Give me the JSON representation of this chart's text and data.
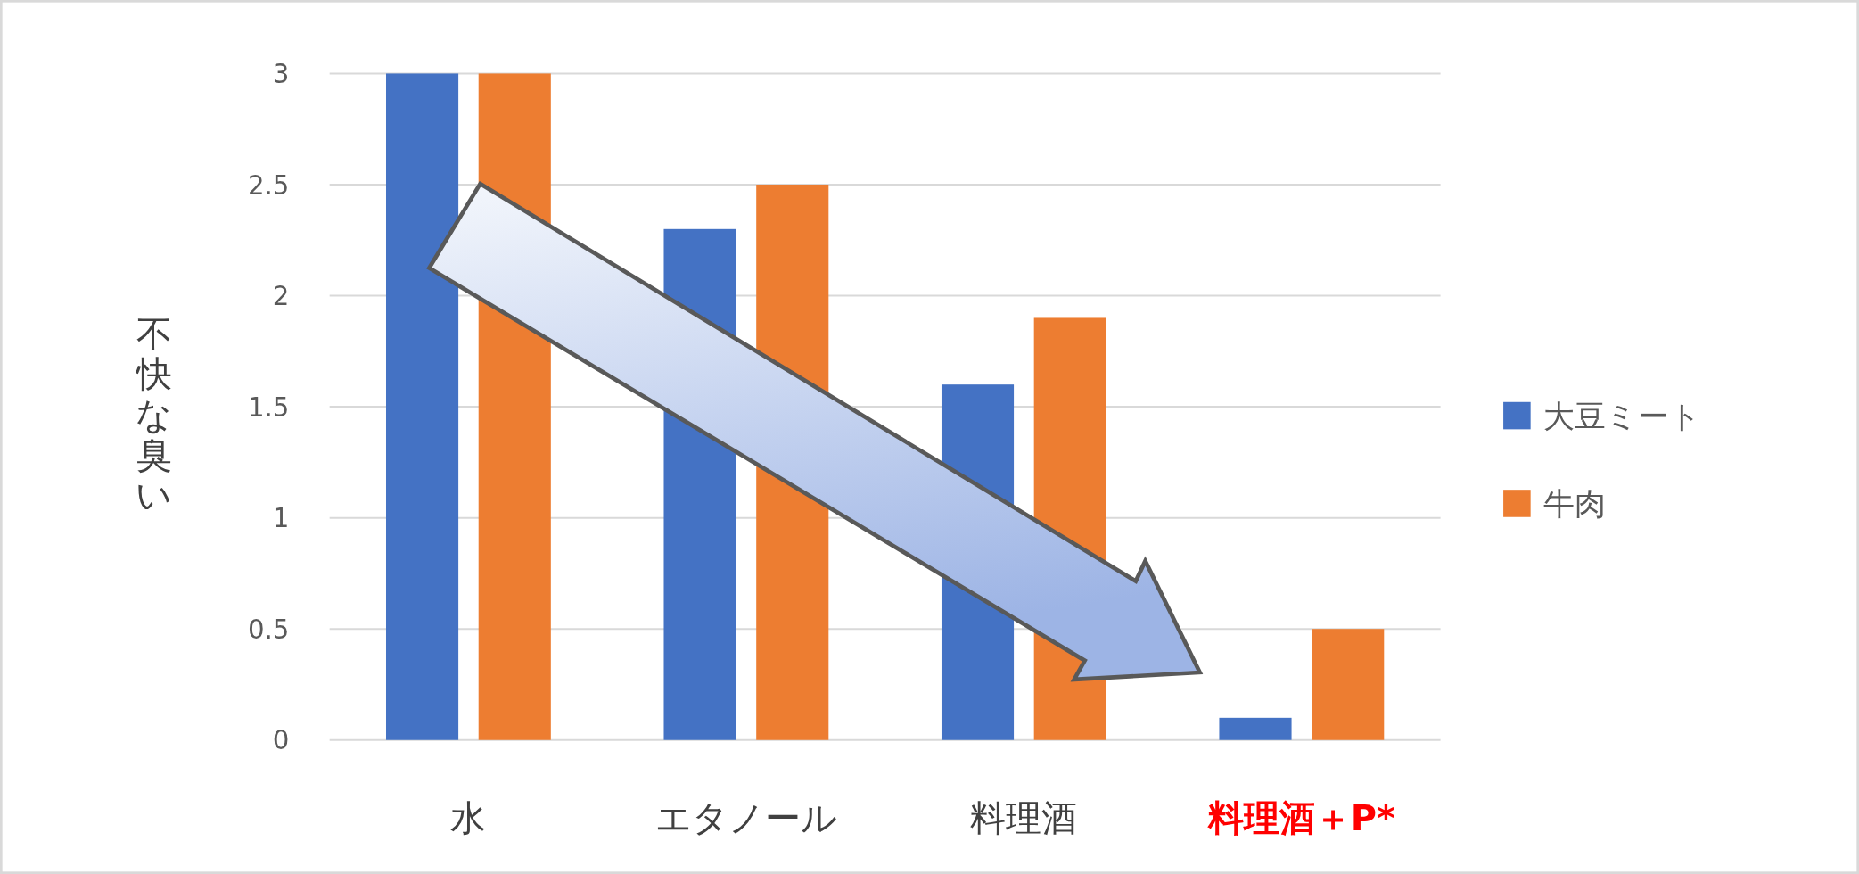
{
  "chart_data": {
    "type": "bar",
    "ylabel": "不快な臭い",
    "categories": [
      "水",
      "エタノール",
      "料理酒",
      "料理酒＋P*"
    ],
    "series": [
      {
        "name": "大豆ミート",
        "color": "#4472c4",
        "values": [
          3,
          2.3,
          1.6,
          0.1
        ]
      },
      {
        "name": "牛肉",
        "color": "#ed7d31",
        "values": [
          3,
          2.5,
          1.9,
          0.5
        ]
      }
    ],
    "ylim": [
      0,
      3
    ],
    "yticks": [
      0,
      0.5,
      1,
      1.5,
      2,
      2.5,
      3
    ],
    "grid": "y",
    "legend": "right"
  }
}
